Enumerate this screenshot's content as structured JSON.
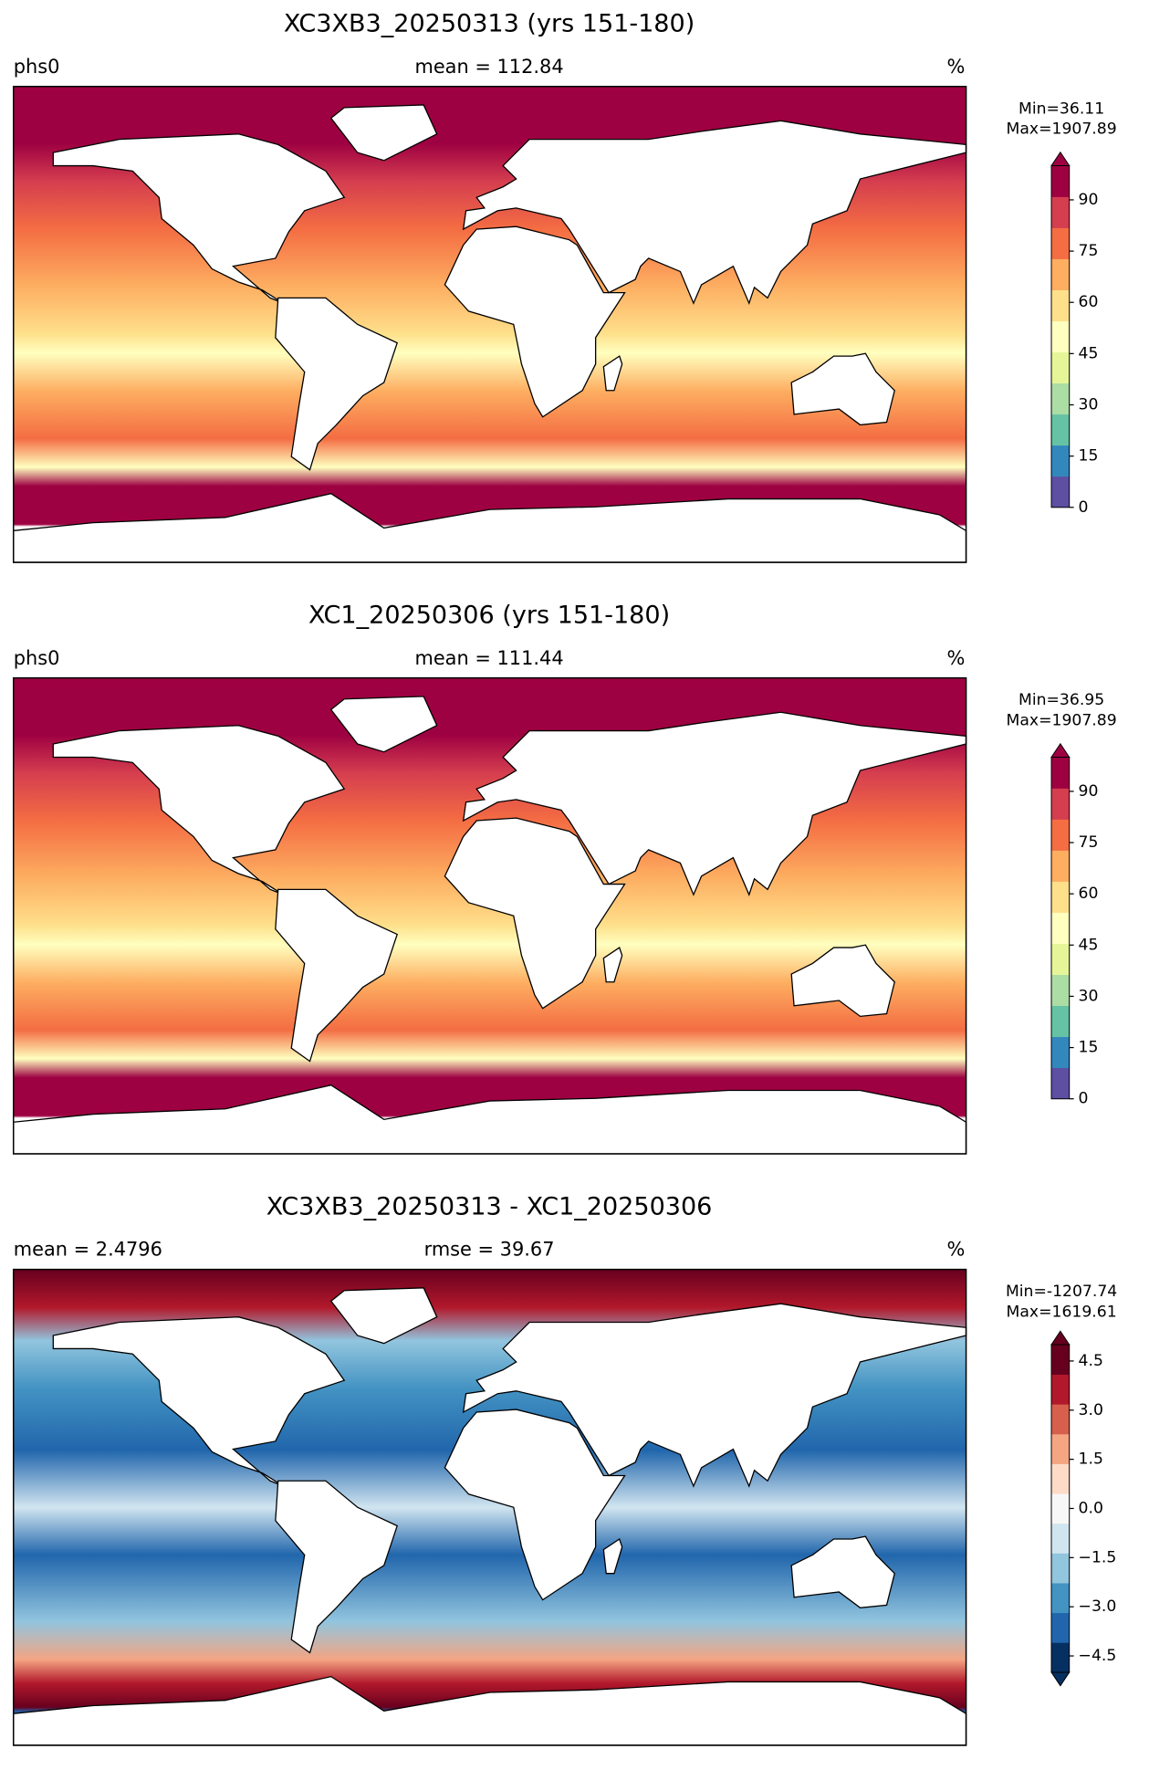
{
  "chart_data": [
    {
      "type": "map",
      "title": "XC3XB3_20250313 (yrs 151-180)",
      "left_label": "phs0",
      "center_label": "mean = 112.84",
      "right_label": "%",
      "stats": [
        "Min=36.11",
        "Max=1907.89"
      ],
      "clim": [
        0,
        100
      ],
      "cticks": [
        0,
        15,
        30,
        45,
        60,
        75,
        90
      ],
      "extend": "max",
      "colors": [
        "#5e4fa2",
        "#3288bd",
        "#66c2a5",
        "#abdda4",
        "#e6f598",
        "#ffffbf",
        "#fee08b",
        "#fdae61",
        "#f46d43",
        "#d53e4f",
        "#9e0142"
      ]
    },
    {
      "type": "map",
      "title": "XC1_20250306 (yrs 151-180)",
      "left_label": "phs0",
      "center_label": "mean = 111.44",
      "right_label": "%",
      "stats": [
        "Min=36.95",
        "Max=1907.89"
      ],
      "clim": [
        0,
        100
      ],
      "cticks": [
        0,
        15,
        30,
        45,
        60,
        75,
        90
      ],
      "extend": "max",
      "colors": [
        "#5e4fa2",
        "#3288bd",
        "#66c2a5",
        "#abdda4",
        "#e6f598",
        "#ffffbf",
        "#fee08b",
        "#fdae61",
        "#f46d43",
        "#d53e4f",
        "#9e0142"
      ]
    },
    {
      "type": "map",
      "title": "XC3XB3_20250313 - XC1_20250306",
      "left_label": "mean = 2.4796",
      "center_label": "rmse = 39.67",
      "right_label": "%",
      "stats": [
        "Min=-1207.74",
        "Max=1619.61"
      ],
      "clim": [
        -5,
        5
      ],
      "cticks": [
        {
          "value": -4.5,
          "label": "−4.5"
        },
        {
          "value": -3,
          "label": "−3.0"
        },
        {
          "value": -1.5,
          "label": "−1.5"
        },
        {
          "value": 0,
          "label": "0.0"
        },
        {
          "value": 1.5,
          "label": "1.5"
        },
        {
          "value": 3,
          "label": "3.0"
        },
        {
          "value": 4.5,
          "label": "4.5"
        }
      ],
      "extend": "both",
      "colors": [
        "#053061",
        "#2166ac",
        "#4393c3",
        "#92c5de",
        "#d1e5f0",
        "#f7f7f7",
        "#fddbc7",
        "#f4a582",
        "#d6604d",
        "#b2182b",
        "#67001f"
      ]
    }
  ]
}
